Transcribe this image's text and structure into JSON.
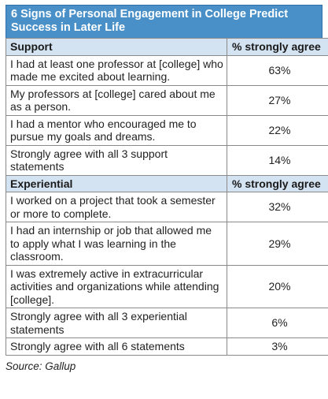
{
  "title": "6 Signs of Personal Engagement in College Predict\nSuccess in Later Life",
  "source": "Source: Gallup",
  "colors": {
    "title_background": "#4a90c8",
    "header_background": "#d4e3f1"
  },
  "chart_data": {
    "type": "table",
    "title": "6 Signs of Personal Engagement in College Predict Success in Later Life",
    "sections": [
      {
        "name": "Support",
        "value_header": "% strongly agree",
        "rows": [
          {
            "label": "I had at least one professor at [college] who made me excited about learning.",
            "value": "63%"
          },
          {
            "label": "My professors at [college] cared about me as a person.",
            "value": "27%"
          },
          {
            "label": "I had a mentor who encouraged me to pursue my goals and dreams.",
            "value": "22%"
          },
          {
            "label": "Strongly agree with all 3 support statements",
            "value": "14%"
          }
        ]
      },
      {
        "name": "Experiential",
        "value_header": "% strongly agree",
        "rows": [
          {
            "label": "I worked on a project that took a semester or more to complete.",
            "value": "32%"
          },
          {
            "label": "I had an internship or job that allowed me to apply what I was learning in the classroom.",
            "value": "29%"
          },
          {
            "label": "I was extremely active in extracurricular activities and organizations while attending [college].",
            "value": "20%"
          },
          {
            "label": "Strongly agree with all 3 experiential statements",
            "value": "6%"
          },
          {
            "label": "Strongly agree with all 6 statements",
            "value": "3%"
          }
        ]
      }
    ]
  }
}
